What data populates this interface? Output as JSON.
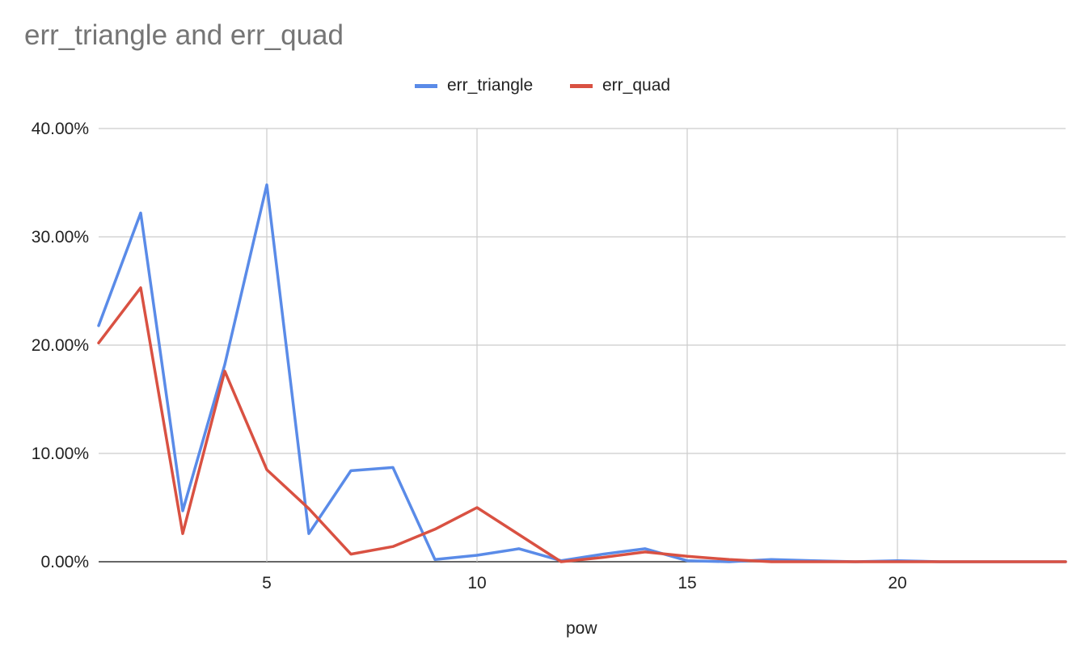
{
  "chart_data": {
    "type": "line",
    "title": "err_triangle and err_quad",
    "xlabel": "pow",
    "ylabel": "",
    "xlim": [
      1,
      24
    ],
    "ylim": [
      0,
      40
    ],
    "x_ticks": [
      5,
      10,
      15,
      20
    ],
    "y_ticks": [
      0,
      10,
      20,
      30,
      40
    ],
    "y_tick_labels": [
      "0.00%",
      "10.00%",
      "20.00%",
      "30.00%",
      "40.00%"
    ],
    "grid": true,
    "legend_position": "top-center",
    "x": [
      1,
      2,
      3,
      4,
      5,
      6,
      7,
      8,
      9,
      10,
      11,
      12,
      13,
      14,
      15,
      16,
      17,
      18,
      19,
      20,
      21,
      22,
      23,
      24
    ],
    "series": [
      {
        "name": "err_triangle",
        "color": "#5a8be8",
        "values": [
          21.8,
          32.2,
          4.7,
          18.2,
          34.8,
          2.6,
          8.4,
          8.7,
          0.2,
          0.6,
          1.2,
          0.1,
          0.7,
          1.2,
          0.1,
          0.0,
          0.2,
          0.1,
          0.0,
          0.1,
          0.0,
          0.0,
          0.0,
          0.0
        ]
      },
      {
        "name": "err_quad",
        "color": "#d95142",
        "values": [
          20.2,
          25.3,
          2.6,
          17.6,
          8.5,
          4.9,
          0.7,
          1.4,
          3.0,
          5.0,
          2.5,
          0.0,
          0.4,
          0.9,
          0.5,
          0.2,
          0.0,
          0.0,
          0.0,
          0.0,
          0.0,
          0.0,
          0.0,
          0.0
        ]
      }
    ]
  }
}
